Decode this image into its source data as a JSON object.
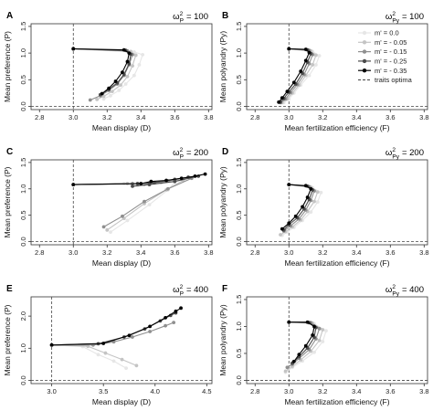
{
  "legend": {
    "entries": [
      {
        "label": "m' = 0.0",
        "color": "#e6e6e6",
        "marker": "circle"
      },
      {
        "label": "m' = - 0.05",
        "color": "#c4c4c4",
        "marker": "circle"
      },
      {
        "label": "m' = - 0.15",
        "color": "#8f8f8f",
        "marker": "circle"
      },
      {
        "label": "m' = - 0.25",
        "color": "#4a4a4a",
        "marker": "circle"
      },
      {
        "label": "m' = - 0.35",
        "color": "#000000",
        "marker": "circle"
      },
      {
        "label": "traits optima",
        "color": "#444444",
        "marker": "dashed-line"
      }
    ]
  },
  "chart_data": [
    {
      "panel": "A",
      "type": "line",
      "omega_label": "ω",
      "omega_sup": "2",
      "omega_sub": "P",
      "omega_value": "= 100",
      "xlabel": "Mean display (D)",
      "ylabel": "Mean preference (P)",
      "xlim": [
        2.75,
        3.82
      ],
      "ylim": [
        -0.06,
        1.55
      ],
      "xticks": [
        "2.8",
        "3.0",
        "3.2",
        "3.4",
        "3.6",
        "3.8"
      ],
      "yticks": [
        "0.0",
        "0.5",
        "1.0",
        "1.5"
      ],
      "optimum_x": 3.0,
      "optimum_y": 0.0,
      "series": [
        {
          "values_x": [
            3.0,
            3.36,
            3.41,
            3.39,
            3.36,
            3.31,
            3.27,
            3.22,
            3.18
          ],
          "values_y": [
            1.08,
            1.02,
            0.97,
            0.78,
            0.58,
            0.42,
            0.3,
            0.2,
            0.14
          ]
        },
        {
          "values_x": [
            3.0,
            3.34,
            3.37,
            3.35,
            3.32,
            3.28,
            3.23,
            3.18,
            3.14
          ],
          "values_y": [
            1.08,
            1.03,
            0.96,
            0.76,
            0.56,
            0.4,
            0.28,
            0.19,
            0.13
          ]
        },
        {
          "values_x": [
            3.0,
            3.32,
            3.35,
            3.33,
            3.3,
            3.26,
            3.21,
            3.16,
            3.1
          ],
          "values_y": [
            1.08,
            1.04,
            0.97,
            0.78,
            0.58,
            0.42,
            0.3,
            0.2,
            0.12
          ]
        },
        {
          "values_x": [
            3.0,
            3.31,
            3.34,
            3.33,
            3.3,
            3.26,
            3.21,
            3.16
          ],
          "values_y": [
            1.08,
            1.05,
            0.98,
            0.8,
            0.6,
            0.44,
            0.32,
            0.22
          ]
        },
        {
          "values_x": [
            3.0,
            3.3,
            3.33,
            3.32,
            3.29,
            3.25,
            3.21,
            3.17
          ],
          "values_y": [
            1.08,
            1.06,
            1.0,
            0.84,
            0.64,
            0.47,
            0.34,
            0.24
          ]
        }
      ]
    },
    {
      "panel": "B",
      "type": "line",
      "omega_label": "ω",
      "omega_sup": "2",
      "omega_sub": "Py",
      "omega_value": "= 100",
      "xlabel": "Mean fertilization efficiency (F)",
      "ylabel": "Mean polyandry (Py)",
      "xlim": [
        2.75,
        3.82
      ],
      "ylim": [
        -0.06,
        1.55
      ],
      "xticks": [
        "2.8",
        "3.0",
        "3.2",
        "3.4",
        "3.6",
        "3.8"
      ],
      "yticks": [
        "0.0",
        "0.5",
        "1.0",
        "1.5"
      ],
      "optimum_x": 3.0,
      "optimum_y": 0.0,
      "series": [
        {
          "values_x": [
            3.0,
            3.14,
            3.18,
            3.16,
            3.12,
            3.07,
            3.03,
            3.0,
            2.97
          ],
          "values_y": [
            1.08,
            1.03,
            0.95,
            0.78,
            0.58,
            0.4,
            0.25,
            0.14,
            0.07
          ]
        },
        {
          "values_x": [
            3.0,
            3.13,
            3.16,
            3.14,
            3.1,
            3.06,
            3.02,
            2.99,
            2.96
          ],
          "values_y": [
            1.08,
            1.04,
            0.96,
            0.78,
            0.58,
            0.4,
            0.25,
            0.14,
            0.07
          ]
        },
        {
          "values_x": [
            3.0,
            3.12,
            3.14,
            3.12,
            3.09,
            3.05,
            3.01,
            2.98,
            2.95
          ],
          "values_y": [
            1.08,
            1.05,
            0.97,
            0.8,
            0.6,
            0.41,
            0.26,
            0.14,
            0.07
          ]
        },
        {
          "values_x": [
            3.0,
            3.11,
            3.13,
            3.11,
            3.08,
            3.04,
            3.0,
            2.97,
            2.95
          ],
          "values_y": [
            1.08,
            1.06,
            0.99,
            0.83,
            0.62,
            0.42,
            0.27,
            0.15,
            0.08
          ]
        },
        {
          "values_x": [
            3.0,
            3.1,
            3.12,
            3.1,
            3.07,
            3.03,
            2.99,
            2.96,
            2.94
          ],
          "values_y": [
            1.08,
            1.07,
            1.01,
            0.86,
            0.66,
            0.45,
            0.28,
            0.16,
            0.08
          ]
        }
      ]
    },
    {
      "panel": "C",
      "type": "line",
      "omega_label": "ω",
      "omega_sup": "2",
      "omega_sub": "P",
      "omega_value": "= 200",
      "xlabel": "Mean display (D)",
      "ylabel": "Mean preference (P)",
      "xlim": [
        2.75,
        3.82
      ],
      "ylim": [
        -0.06,
        1.55
      ],
      "xticks": [
        "2.8",
        "3.0",
        "3.2",
        "3.4",
        "3.6",
        "3.8"
      ],
      "yticks": [
        "0.0",
        "0.5",
        "1.0",
        "1.5"
      ],
      "optimum_x": 3.0,
      "optimum_y": 0.0,
      "series": [
        {
          "values_x": [
            3.0,
            3.3,
            3.38,
            3.48,
            3.55,
            3.6,
            3.56,
            3.45,
            3.32,
            3.22
          ],
          "values_y": [
            1.08,
            1.1,
            1.06,
            1.1,
            1.14,
            1.13,
            0.98,
            0.7,
            0.4,
            0.18
          ]
        },
        {
          "values_x": [
            3.0,
            3.32,
            3.42,
            3.52,
            3.6,
            3.65,
            3.55,
            3.42,
            3.3,
            3.2
          ],
          "values_y": [
            1.08,
            1.1,
            1.08,
            1.12,
            1.17,
            1.16,
            0.98,
            0.72,
            0.44,
            0.22
          ]
        },
        {
          "values_x": [
            3.0,
            3.35,
            3.45,
            3.56,
            3.64,
            3.7,
            3.56,
            3.42,
            3.29,
            3.18
          ],
          "values_y": [
            1.08,
            1.1,
            1.1,
            1.15,
            1.2,
            1.2,
            1.0,
            0.76,
            0.48,
            0.28
          ]
        },
        {
          "values_x": [
            3.0,
            3.38,
            3.48,
            3.6,
            3.68,
            3.74,
            3.6,
            3.45,
            3.35
          ],
          "values_y": [
            1.08,
            1.1,
            1.12,
            1.18,
            1.22,
            1.24,
            1.14,
            1.08,
            1.05
          ]
        },
        {
          "values_x": [
            3.0,
            3.4,
            3.46,
            3.55,
            3.64,
            3.72,
            3.78
          ],
          "values_y": [
            1.08,
            1.1,
            1.14,
            1.16,
            1.2,
            1.24,
            1.28
          ]
        }
      ]
    },
    {
      "panel": "D",
      "type": "line",
      "omega_label": "ω",
      "omega_sup": "2",
      "omega_sub": "Py",
      "omega_value": "= 200",
      "xlabel": "Mean fertilization efficiency (F)",
      "ylabel": "Mean polyandry (Py)",
      "xlim": [
        2.75,
        3.82
      ],
      "ylim": [
        -0.06,
        1.55
      ],
      "xticks": [
        "2.8",
        "3.0",
        "3.2",
        "3.4",
        "3.6",
        "3.8"
      ],
      "yticks": [
        "0.0",
        "0.5",
        "1.0",
        "1.5"
      ],
      "optimum_x": 3.0,
      "optimum_y": 0.0,
      "series": [
        {
          "values_x": [
            3.0,
            3.14,
            3.19,
            3.17,
            3.13,
            3.08,
            3.03,
            2.99,
            2.96
          ],
          "values_y": [
            1.08,
            1.02,
            0.93,
            0.75,
            0.56,
            0.4,
            0.27,
            0.18,
            0.12
          ]
        },
        {
          "values_x": [
            3.0,
            3.13,
            3.17,
            3.15,
            3.11,
            3.07,
            3.02,
            2.98,
            2.95
          ],
          "values_y": [
            1.08,
            1.03,
            0.94,
            0.76,
            0.57,
            0.41,
            0.28,
            0.19,
            0.13
          ]
        },
        {
          "values_x": [
            3.0,
            3.12,
            3.15,
            3.13,
            3.1,
            3.06,
            3.01,
            2.97
          ],
          "values_y": [
            1.08,
            1.04,
            0.96,
            0.78,
            0.6,
            0.43,
            0.3,
            0.2
          ]
        },
        {
          "values_x": [
            3.0,
            3.11,
            3.14,
            3.12,
            3.09,
            3.05,
            3.0,
            2.97
          ],
          "values_y": [
            1.08,
            1.05,
            0.98,
            0.8,
            0.62,
            0.45,
            0.32,
            0.22
          ]
        },
        {
          "values_x": [
            3.0,
            3.1,
            3.13,
            3.11,
            3.08,
            3.04,
            3.0,
            2.96
          ],
          "values_y": [
            1.08,
            1.06,
            1.0,
            0.84,
            0.66,
            0.48,
            0.35,
            0.24
          ]
        }
      ]
    },
    {
      "panel": "E",
      "type": "line",
      "omega_label": "ω",
      "omega_sup": "2",
      "omega_sub": "P",
      "omega_value": "= 400",
      "xlabel": "Mean display (D)",
      "ylabel": "Mean preference (P)",
      "xlim": [
        2.8,
        4.55
      ],
      "ylim": [
        -0.1,
        2.6
      ],
      "xticks": [
        "3.0",
        "3.5",
        "4.0",
        "4.5"
      ],
      "yticks": [
        "0.0",
        "1.0",
        "2.0"
      ],
      "optimum_x": 3.0,
      "optimum_y": 0.0,
      "series": [
        {
          "values_x": [
            3.0,
            3.3,
            3.45,
            3.6,
            3.72
          ],
          "values_y": [
            1.1,
            1.05,
            0.8,
            0.6,
            0.38
          ]
        },
        {
          "values_x": [
            3.0,
            3.35,
            3.52,
            3.68,
            3.82
          ],
          "values_y": [
            1.1,
            1.06,
            0.85,
            0.65,
            0.46
          ]
        },
        {
          "values_x": [
            3.0,
            3.4,
            3.6,
            3.78,
            3.95,
            4.1,
            4.18
          ],
          "values_y": [
            1.1,
            1.1,
            1.2,
            1.35,
            1.52,
            1.7,
            1.8
          ]
        },
        {
          "values_x": [
            3.0,
            3.45,
            3.7,
            3.9,
            4.05,
            4.15,
            4.2
          ],
          "values_y": [
            1.1,
            1.14,
            1.35,
            1.6,
            1.85,
            2.02,
            2.1
          ]
        },
        {
          "values_x": [
            3.0,
            3.5,
            3.75,
            3.95,
            4.1,
            4.2,
            4.25
          ],
          "values_y": [
            1.1,
            1.15,
            1.4,
            1.68,
            1.95,
            2.15,
            2.25
          ]
        }
      ]
    },
    {
      "panel": "F",
      "type": "line",
      "omega_label": "ω",
      "omega_sup": "2",
      "omega_sub": "Py",
      "omega_value": "= 400",
      "xlabel": "Mean fertilization efficiency (F)",
      "ylabel": "Mean polyandry (Py)",
      "xlim": [
        2.75,
        3.82
      ],
      "ylim": [
        -0.06,
        1.55
      ],
      "xticks": [
        "2.8",
        "3.0",
        "3.2",
        "3.4",
        "3.6",
        "3.8"
      ],
      "yticks": [
        "0.0",
        "0.5",
        "1.0",
        "1.5"
      ],
      "optimum_x": 3.0,
      "optimum_y": 0.0,
      "series": [
        {
          "values_x": [
            3.0,
            3.15,
            3.22,
            3.2,
            3.15,
            3.08,
            3.02,
            2.98
          ],
          "values_y": [
            1.08,
            1.05,
            0.92,
            0.72,
            0.52,
            0.36,
            0.24,
            0.15
          ]
        },
        {
          "values_x": [
            3.0,
            3.14,
            3.2,
            3.18,
            3.13,
            3.07,
            3.02,
            2.98
          ],
          "values_y": [
            1.08,
            1.06,
            0.94,
            0.74,
            0.54,
            0.38,
            0.26,
            0.17
          ]
        },
        {
          "values_x": [
            3.0,
            3.13,
            3.18,
            3.16,
            3.12,
            3.06,
            3.02,
            2.99
          ],
          "values_y": [
            1.08,
            1.07,
            0.96,
            0.77,
            0.57,
            0.41,
            0.3,
            0.24
          ]
        },
        {
          "values_x": [
            3.0,
            3.12,
            3.16,
            3.15,
            3.11,
            3.06,
            3.02
          ],
          "values_y": [
            1.08,
            1.07,
            0.98,
            0.8,
            0.6,
            0.44,
            0.32
          ]
        },
        {
          "values_x": [
            3.0,
            3.11,
            3.15,
            3.14,
            3.1,
            3.06,
            3.03
          ],
          "values_y": [
            1.08,
            1.08,
            1.0,
            0.84,
            0.64,
            0.48,
            0.35
          ]
        }
      ]
    }
  ]
}
